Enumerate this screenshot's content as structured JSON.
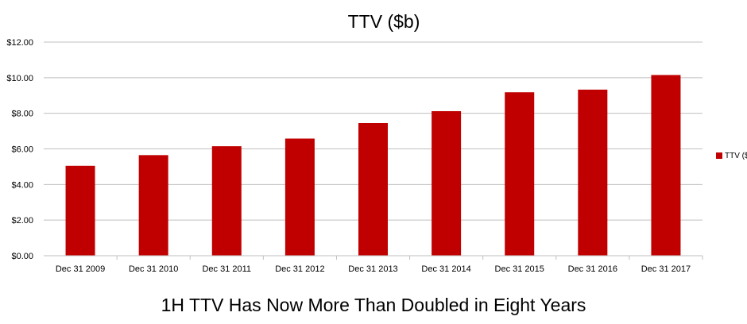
{
  "chart_data": {
    "type": "bar",
    "title": "TTV ($b)",
    "categories": [
      "Dec 31 2009",
      "Dec 31 2010",
      "Dec 31 2011",
      "Dec 31 2012",
      "Dec 31 2013",
      "Dec 31 2014",
      "Dec 31 2015",
      "Dec 31 2016",
      "Dec 31 2017"
    ],
    "series": [
      {
        "name": "TTV ($b)",
        "values": [
          5.05,
          5.65,
          6.15,
          6.58,
          7.45,
          8.12,
          9.18,
          9.33,
          10.15
        ]
      }
    ],
    "xlabel": "",
    "ylabel": "",
    "ylim": [
      0,
      12
    ],
    "yticks": [
      "$0.00",
      "$2.00",
      "$4.00",
      "$6.00",
      "$8.00",
      "$10.00",
      "$12.00"
    ],
    "grid": true,
    "legend": "right",
    "colors": {
      "bar": "#C00000",
      "grid": "#BFBFBF"
    }
  },
  "caption": "1H TTV Has Now More Than Doubled in Eight Years"
}
